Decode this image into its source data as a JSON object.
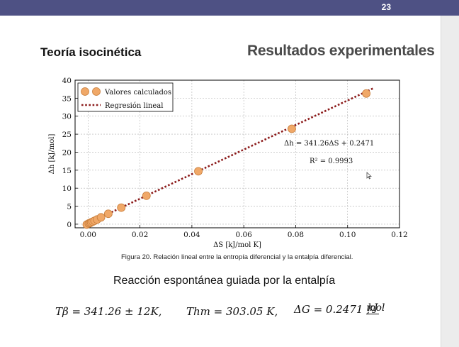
{
  "slide": {
    "number": "23"
  },
  "left_title": "Teoría isocinética",
  "right_title": "Resultados experimentales",
  "chart_data": {
    "type": "scatter",
    "xlabel": "ΔS [kJ/mol K]",
    "ylabel": "Δh [kJ/mol]",
    "xlim": [
      -0.005,
      0.12
    ],
    "ylim": [
      -1,
      40
    ],
    "xticks": [
      0.0,
      0.02,
      0.04,
      0.06,
      0.08,
      0.1,
      0.12
    ],
    "xtick_labels": [
      "0.00",
      "0.02",
      "0.04",
      "0.06",
      "0.08",
      "0.10",
      "0.12"
    ],
    "yticks": [
      0,
      5,
      10,
      15,
      20,
      25,
      30,
      35,
      40
    ],
    "ytick_labels": [
      "0",
      "5",
      "10",
      "15",
      "20",
      "25",
      "30",
      "35",
      "40"
    ],
    "grid": true,
    "legend_placement": "top-left",
    "series": [
      {
        "name": "Valores calculados",
        "kind": "scatter",
        "color": "#f0a868",
        "points": [
          [
            -0.0005,
            -0.1
          ],
          [
            0.0003,
            0.2
          ],
          [
            0.0008,
            0.35
          ],
          [
            0.0012,
            0.5
          ],
          [
            0.0018,
            0.7
          ],
          [
            0.0025,
            0.95
          ],
          [
            0.0035,
            1.3
          ],
          [
            0.005,
            1.9
          ],
          [
            0.0078,
            2.9
          ],
          [
            0.0128,
            4.6
          ],
          [
            0.0225,
            7.9
          ],
          [
            0.0425,
            14.7
          ],
          [
            0.0785,
            26.5
          ],
          [
            0.1072,
            36.3
          ]
        ]
      },
      {
        "name": "Regresión lineal",
        "kind": "line",
        "color": "#8b1a1a",
        "slope": 341.26,
        "intercept": 0.2471,
        "x_range": [
          0.0,
          0.11
        ]
      }
    ],
    "annotation": {
      "equation": "Δh = 341.26ΔS + 0.2471",
      "r2": "R² = 0.9993"
    }
  },
  "caption": "Figura 20. Relación lineal entre la entropía diferencial y la entalpía diferencial.",
  "subtitle": "Reacción espontánea guiada por la entalpía",
  "formula": {
    "t_beta": "Tβ = 341.26 ± 12K,",
    "t_hm": "Thm = 303.05 K,",
    "delta_g": "ΔG = 0.2471",
    "unit_num": "kJ",
    "unit_den": "mol",
    "trail": ","
  }
}
